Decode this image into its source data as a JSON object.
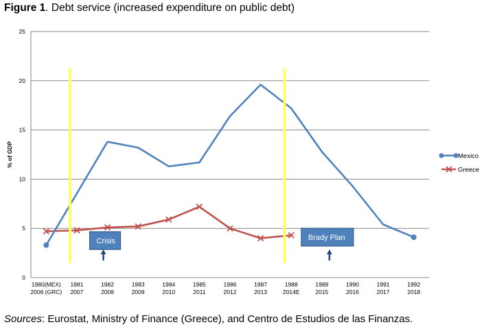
{
  "figure": {
    "label": "Figure 1",
    "caption": ". Debt service (increased expenditure on public debt)"
  },
  "sources": {
    "label": "Sources",
    "text": ": Eurostat, Ministry of Finance (Greece), and Centro de Estudios de las Finanzas."
  },
  "chart_data": {
    "type": "line",
    "ylabel": "% of GDP",
    "xlabel": "",
    "ylim": [
      0,
      25
    ],
    "yticks": [
      0,
      5,
      10,
      15,
      20,
      25
    ],
    "grid": true,
    "legend_position": "right",
    "categories": [
      [
        "1980(MEX)",
        "2006 (GRC)"
      ],
      [
        "1981",
        "2007"
      ],
      [
        "1982",
        "2008"
      ],
      [
        "1983",
        "2009"
      ],
      [
        "1984",
        "2010"
      ],
      [
        "1985",
        "2011"
      ],
      [
        "1986",
        "2012"
      ],
      [
        "1987",
        "2013"
      ],
      [
        "1988",
        "2014E"
      ],
      [
        "1989",
        "2015"
      ],
      [
        "1990",
        "2016"
      ],
      [
        "1991",
        "2017"
      ],
      [
        "1992",
        "2018"
      ]
    ],
    "series": [
      {
        "name": "Mexico",
        "color": "#4f81bd",
        "marker": "circle",
        "values": [
          3.3,
          null,
          13.8,
          13.2,
          11.3,
          11.7,
          16.4,
          19.6,
          17.2,
          12.8,
          9.3,
          5.4,
          4.1
        ]
      },
      {
        "name": "Greece",
        "color": "#c0504d",
        "marker": "x",
        "values": [
          4.7,
          4.8,
          5.1,
          5.2,
          5.9,
          7.2,
          5.0,
          4.0,
          4.3,
          null,
          null,
          null,
          null
        ]
      }
    ],
    "highlights": [
      {
        "color": "#ffff66",
        "at_category": 1
      },
      {
        "color": "#ffff66",
        "at_category": 8
      }
    ],
    "annotations": [
      {
        "text": "Crisis",
        "color": "#4f81bd",
        "at_category": 2
      },
      {
        "text": "Brady Plan",
        "color": "#4f81bd",
        "at_category": 9
      }
    ]
  }
}
